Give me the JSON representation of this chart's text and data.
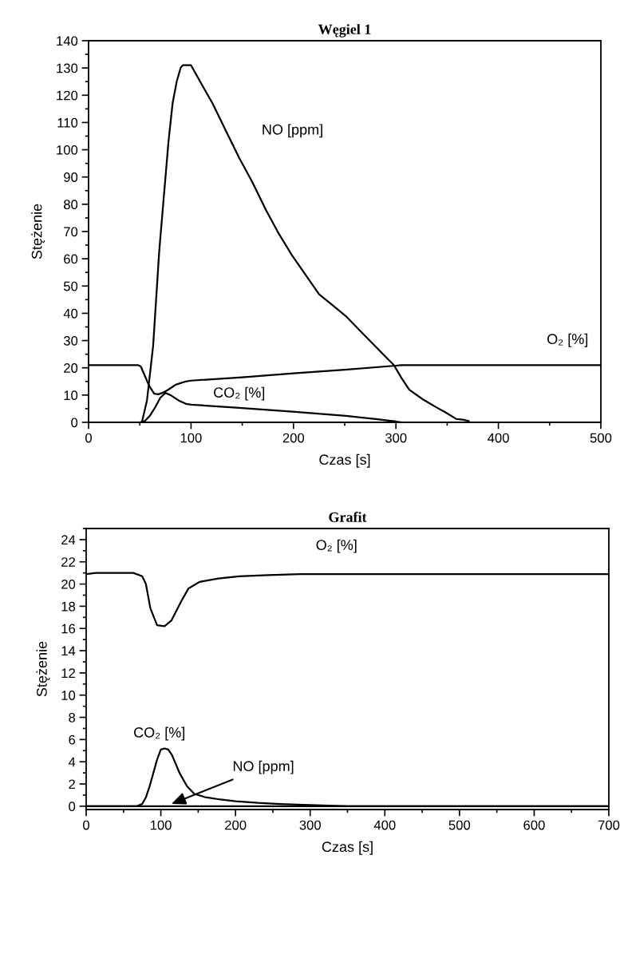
{
  "chart_data": [
    {
      "type": "line",
      "title": "Węgiel 1",
      "xlabel": "Czas [s]",
      "ylabel": "Stężenie",
      "xlim": [
        0,
        500
      ],
      "xticks": [
        0,
        100,
        200,
        300,
        400,
        500
      ],
      "ylim": [
        0,
        140
      ],
      "yticks": [
        0,
        10,
        20,
        30,
        40,
        50,
        60,
        70,
        80,
        90,
        100,
        110,
        120,
        130,
        140
      ],
      "grid": false,
      "legend": false,
      "series": [
        {
          "name": "NO [ppm]",
          "color": "#000000",
          "x": [
            0,
            52,
            57,
            63,
            69,
            78,
            82,
            86,
            90,
            92,
            100,
            111,
            121,
            134,
            147,
            160,
            173,
            186,
            199,
            212,
            225,
            238,
            251,
            264,
            277,
            290,
            298,
            305,
            313,
            326,
            339,
            349,
            359,
            365,
            371
          ],
          "values": [
            0,
            0,
            8,
            28,
            63,
            103,
            117,
            125,
            130.2,
            131,
            131,
            123.6,
            117,
            107,
            97,
            88,
            78,
            69,
            61,
            54,
            47,
            43,
            39,
            34,
            29,
            24,
            21,
            16.5,
            12,
            8.5,
            5.6,
            3.5,
            1.2,
            1,
            0.5
          ]
        },
        {
          "name": "O₂ [%]",
          "color": "#000000",
          "x": [
            0,
            48,
            51,
            55,
            59,
            64,
            68,
            72,
            78,
            85,
            95,
            100,
            150,
            200,
            250,
            300,
            305,
            400,
            500
          ],
          "values": [
            21,
            21,
            20.5,
            17,
            13.5,
            10.5,
            10.3,
            10.8,
            12,
            13.8,
            15,
            15.3,
            16.5,
            18,
            19.3,
            20.8,
            21,
            21,
            21
          ]
        },
        {
          "name": "CO₂ [%]",
          "color": "#000000",
          "x": [
            0,
            50,
            55,
            60,
            65,
            70,
            75,
            80,
            88,
            95,
            100,
            147,
            199,
            251,
            280,
            300,
            305
          ],
          "values": [
            0,
            0,
            0.5,
            2.5,
            5.5,
            9,
            10.8,
            10,
            8,
            6.8,
            6.5,
            5.3,
            3.9,
            2.4,
            1.2,
            0.3,
            0
          ]
        }
      ]
    },
    {
      "type": "line",
      "title": "Grafit",
      "xlabel": "Czas [s]",
      "ylabel": "Stężenie",
      "xlim": [
        0,
        700
      ],
      "xticks": [
        0,
        100,
        200,
        300,
        400,
        500,
        600,
        700
      ],
      "ylim": [
        -0.3,
        25
      ],
      "yticks": [
        0,
        2,
        4,
        6,
        8,
        10,
        12,
        14,
        16,
        18,
        20,
        22,
        24
      ],
      "grid": false,
      "legend": false,
      "series": [
        {
          "name": "O₂ [%]",
          "color": "#000000",
          "x": [
            0,
            13,
            63,
            75,
            80,
            86,
            95,
            105,
            114,
            127,
            137,
            152,
            177,
            205,
            244,
            287,
            700
          ],
          "values": [
            20.9,
            21,
            21,
            20.7,
            20,
            17.8,
            16.3,
            16.2,
            16.7,
            18.4,
            19.6,
            20.2,
            20.5,
            20.7,
            20.8,
            20.9,
            20.9
          ]
        },
        {
          "name": "CO₂ [%]",
          "color": "#000000",
          "x": [
            0,
            68,
            75,
            80,
            85,
            90,
            95,
            100,
            105,
            110,
            115,
            120,
            125,
            135,
            145,
            160,
            180,
            200,
            230,
            260,
            300,
            350,
            700
          ],
          "values": [
            0,
            0,
            0.2,
            0.8,
            1.8,
            3,
            4.2,
            5.1,
            5.2,
            5.1,
            4.6,
            3.8,
            3,
            1.8,
            1.1,
            0.8,
            0.6,
            0.45,
            0.3,
            0.2,
            0.1,
            0,
            0
          ]
        },
        {
          "name": "NO [ppm]",
          "color": "#000000",
          "x": [
            0,
            700
          ],
          "values": [
            0,
            0
          ]
        }
      ]
    }
  ]
}
